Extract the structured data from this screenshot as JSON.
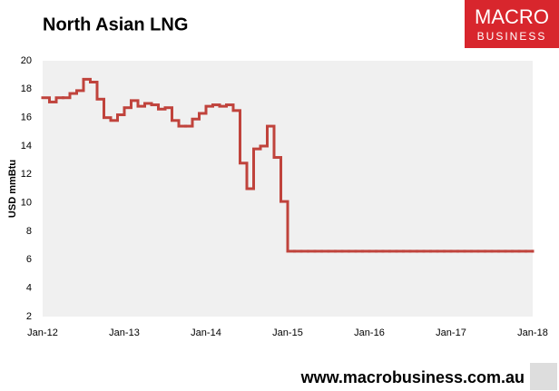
{
  "chart_data": {
    "type": "step",
    "title": "North Asian LNG",
    "y_label": "USD mmBtu",
    "logo_top": "MACRO",
    "logo_bottom": "BUSINESS",
    "source": "www.macrobusiness.com.au",
    "categories": [
      "Jan-12",
      null,
      null,
      null,
      null,
      null,
      null,
      null,
      null,
      null,
      null,
      null,
      "Jan-13",
      null,
      null,
      null,
      null,
      null,
      null,
      null,
      null,
      null,
      null,
      null,
      "Jan-14",
      null,
      null,
      null,
      null,
      null,
      null,
      null,
      null,
      null,
      null,
      null,
      "Jan-15",
      null,
      null,
      null,
      null,
      null,
      null,
      null,
      null,
      null,
      null,
      null,
      "Jan-16",
      null,
      null,
      null,
      null,
      null,
      null,
      null,
      null,
      null,
      null,
      null,
      "Jan-17",
      null,
      null,
      null,
      null,
      null,
      null,
      null,
      null,
      null,
      null,
      null,
      "Jan-18"
    ],
    "values": [
      17.4,
      17.1,
      17.4,
      17.4,
      17.7,
      17.9,
      18.7,
      18.5,
      17.3,
      16.0,
      15.8,
      16.2,
      16.7,
      17.2,
      16.8,
      17.0,
      16.9,
      16.6,
      16.7,
      15.8,
      15.4,
      15.4,
      15.9,
      16.3,
      16.8,
      16.9,
      16.8,
      16.9,
      16.5,
      12.8,
      11.0,
      13.8,
      14.0,
      15.4,
      13.2,
      10.1,
      6.6,
      6.6,
      6.6,
      6.6,
      6.6,
      6.6,
      6.6,
      6.6,
      6.6,
      6.6,
      6.6,
      6.6,
      6.6,
      6.6,
      6.6,
      6.6,
      6.6,
      6.6,
      6.6,
      6.6,
      6.6,
      6.6,
      6.6,
      6.6,
      6.6,
      6.6,
      6.6,
      6.6,
      6.6,
      6.6,
      6.6,
      6.6,
      6.6,
      6.6,
      6.6,
      6.6,
      6.6
    ],
    "color": "#c0433c",
    "ylim": [
      2,
      20
    ],
    "yticks": [
      2,
      4,
      6,
      8,
      10,
      12,
      14,
      16,
      18,
      20
    ],
    "grid": false
  }
}
